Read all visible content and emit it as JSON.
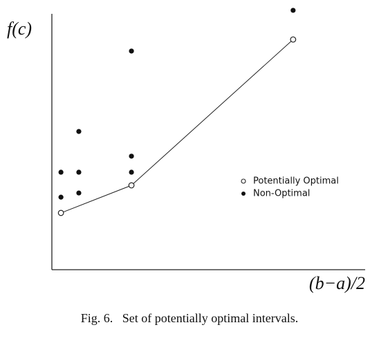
{
  "chart_data": {
    "type": "scatter",
    "x_label": "(b−a)/2",
    "y_label": "f(c)",
    "caption": "Fig. 6.   Set of potentially optimal intervals.",
    "xlim": [
      0,
      100
    ],
    "ylim": [
      0,
      100
    ],
    "legend": "right",
    "series": [
      {
        "name": "Potentially Optimal",
        "color": "#222",
        "marker": "open",
        "line": true,
        "x": [
          2.9,
          25.4,
          77.0
        ],
        "values": [
          21.6,
          32.1,
          87.6
        ]
      },
      {
        "name": "Non-Optimal",
        "color": "#111",
        "marker": "filled",
        "line": false,
        "x": [
          2.9,
          2.9,
          8.6,
          8.6,
          8.6,
          25.4,
          25.4,
          25.4,
          77.0
        ],
        "values": [
          37.1,
          27.6,
          37.1,
          29.2,
          52.6,
          83.2,
          43.2,
          37.1,
          98.7
        ]
      }
    ]
  }
}
